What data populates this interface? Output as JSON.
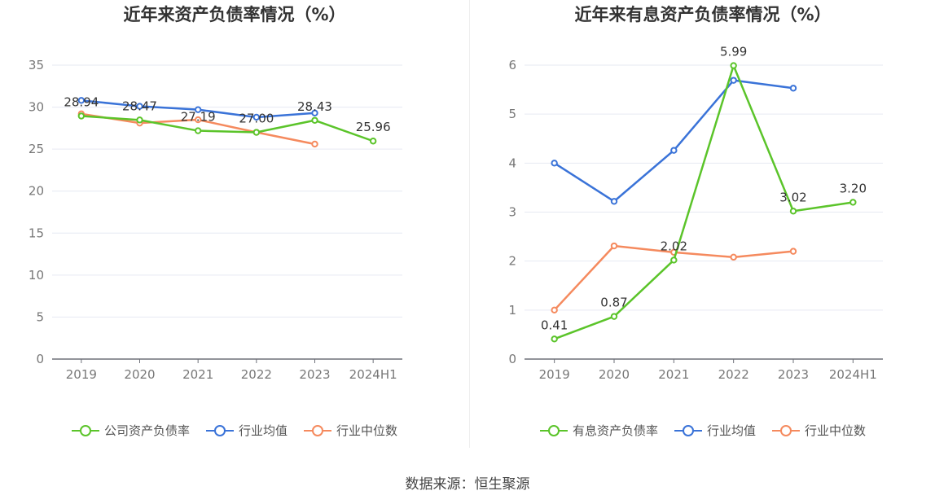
{
  "source": "数据来源：恒生聚源",
  "chart_data": [
    {
      "type": "line",
      "title": "近年来资产负债率情况（%）",
      "categories": [
        "2019",
        "2020",
        "2021",
        "2022",
        "2023",
        "2024H1"
      ],
      "ylim": [
        0,
        35
      ],
      "yticks": [
        0,
        5,
        10,
        15,
        20,
        25,
        30,
        35
      ],
      "grid": true,
      "legend_position": "bottom",
      "series": [
        {
          "name": "公司资产负债率",
          "color": "#5bc42a",
          "values": [
            28.94,
            28.47,
            27.19,
            27.0,
            28.43,
            25.96
          ],
          "labels": [
            "28.94",
            "28.47",
            "27.19",
            "27.00",
            "28.43",
            "25.96"
          ]
        },
        {
          "name": "行业均值",
          "color": "#3a73d8",
          "values": [
            30.8,
            30.1,
            29.7,
            28.8,
            29.3,
            null
          ]
        },
        {
          "name": "行业中位数",
          "color": "#f58a5e",
          "values": [
            29.2,
            28.1,
            28.5,
            27.0,
            25.6,
            null
          ]
        }
      ]
    },
    {
      "type": "line",
      "title": "近年来有息资产负债率情况（%）",
      "categories": [
        "2019",
        "2020",
        "2021",
        "2022",
        "2023",
        "2024H1"
      ],
      "ylim": [
        0,
        6
      ],
      "yticks": [
        0,
        1,
        2,
        3,
        4,
        5,
        6
      ],
      "grid": true,
      "legend_position": "bottom",
      "series": [
        {
          "name": "有息资产负债率",
          "color": "#5bc42a",
          "values": [
            0.41,
            0.87,
            2.02,
            5.99,
            3.02,
            3.2
          ],
          "labels": [
            "0.41",
            "0.87",
            "2.02",
            "5.99",
            "3.02",
            "3.20"
          ]
        },
        {
          "name": "行业均值",
          "color": "#3a73d8",
          "values": [
            4.0,
            3.22,
            4.26,
            5.69,
            5.53,
            null
          ]
        },
        {
          "name": "行业中位数",
          "color": "#f58a5e",
          "values": [
            1.0,
            2.31,
            2.18,
            2.08,
            2.2,
            null
          ]
        }
      ]
    }
  ]
}
